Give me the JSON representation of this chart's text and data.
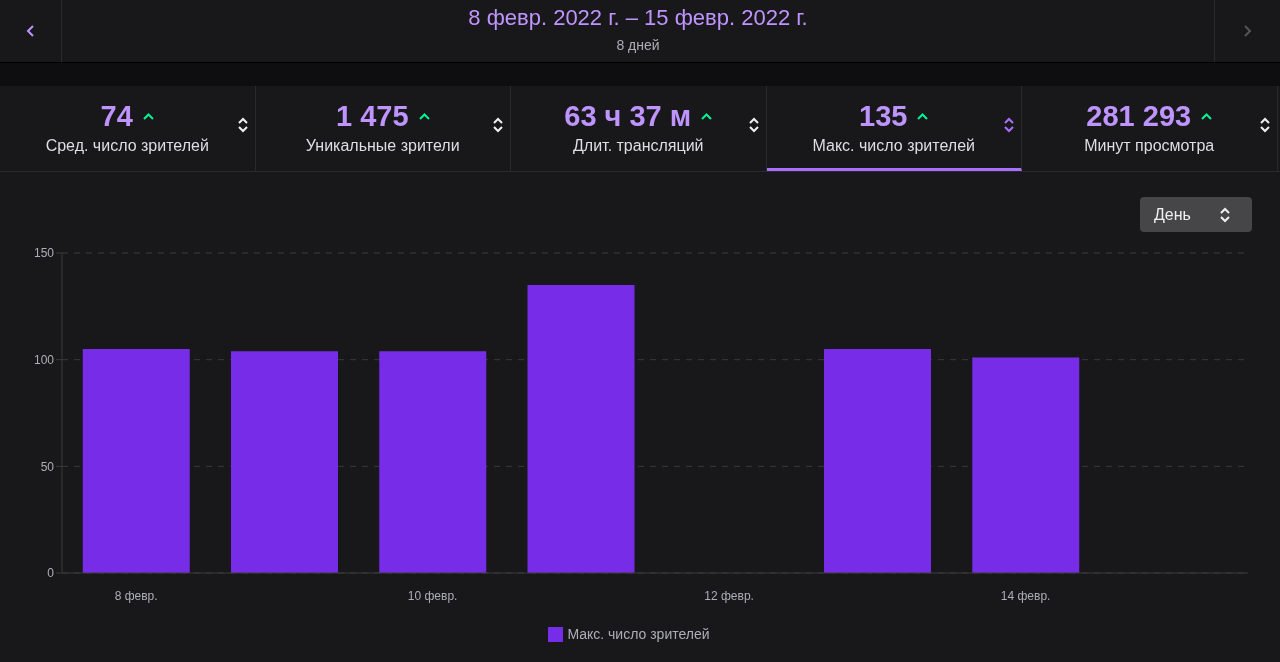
{
  "chart_data": {
    "type": "bar",
    "title": "8 февр. 2022 г. – 15 февр. 2022 г.",
    "subtitle": "8 дней",
    "annotations": [
      "74",
      "Сред. число зрителей",
      "1 475",
      "Уникальные зрители",
      "63 ч 37 м",
      "Длит. трансляций",
      "135",
      "Макс. число зрителей",
      "281 293",
      "Минут просмотра",
      "День"
    ],
    "categories": [
      "8 февр.",
      null,
      "10 февр.",
      null,
      "12 февр.",
      null,
      "14 февр.",
      null
    ],
    "series": [
      {
        "name": "Макс. число зрителей",
        "color": "#772ce8",
        "values": [
          105,
          104,
          104,
          135,
          null,
          105,
          101,
          null
        ]
      }
    ],
    "ylim": [
      0,
      150
    ],
    "yticks": [
      0,
      50,
      100,
      150
    ],
    "grid": "y",
    "legend": "bottom"
  }
}
